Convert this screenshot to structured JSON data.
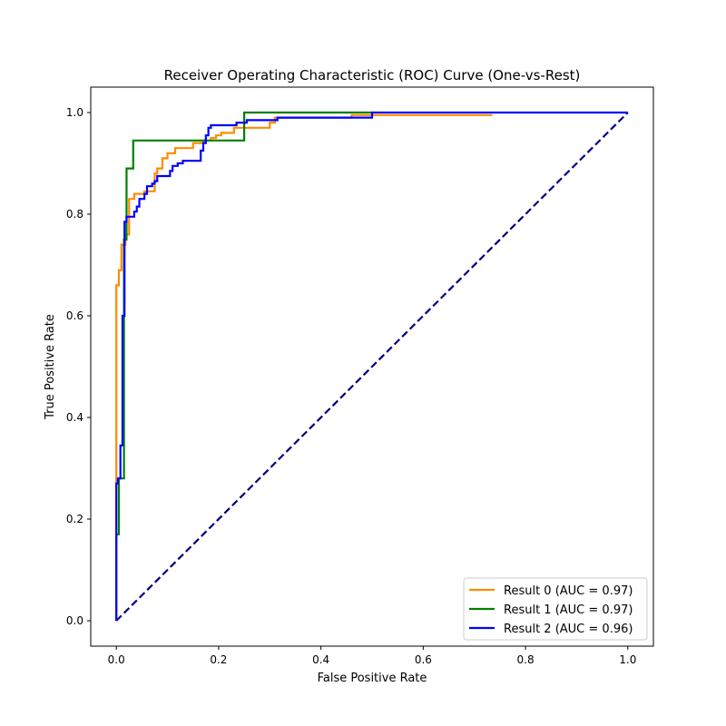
{
  "chart_data": {
    "type": "line",
    "title": "Receiver Operating Characteristic (ROC) Curve (One-vs-Rest)",
    "xlabel": "False Positive Rate",
    "ylabel": "True Positive Rate",
    "xlim": [
      -0.05,
      1.05
    ],
    "ylim": [
      -0.05,
      1.05
    ],
    "xticks": [
      0.0,
      0.2,
      0.4,
      0.6,
      0.8,
      1.0
    ],
    "yticks": [
      0.0,
      0.2,
      0.4,
      0.6,
      0.8,
      1.0
    ],
    "grid": false,
    "legend_position": "bottom-right",
    "series": [
      {
        "name": "Result 0 (AUC = 0.97)",
        "color": "#ff8c00",
        "style": "step",
        "x": [
          0.0,
          0.0,
          0.005,
          0.005,
          0.01,
          0.01,
          0.018,
          0.018,
          0.025,
          0.025,
          0.035,
          0.035,
          0.055,
          0.055,
          0.075,
          0.075,
          0.08,
          0.08,
          0.09,
          0.09,
          0.1,
          0.1,
          0.115,
          0.115,
          0.15,
          0.15,
          0.17,
          0.17,
          0.185,
          0.185,
          0.195,
          0.195,
          0.205,
          0.205,
          0.23,
          0.23,
          0.3,
          0.3,
          0.31,
          0.31,
          0.46,
          0.46,
          0.735
        ],
        "y": [
          0.0,
          0.66,
          0.66,
          0.69,
          0.69,
          0.74,
          0.74,
          0.76,
          0.76,
          0.83,
          0.83,
          0.84,
          0.84,
          0.845,
          0.845,
          0.88,
          0.88,
          0.89,
          0.89,
          0.91,
          0.91,
          0.92,
          0.92,
          0.93,
          0.93,
          0.94,
          0.94,
          0.945,
          0.945,
          0.95,
          0.95,
          0.955,
          0.955,
          0.96,
          0.96,
          0.97,
          0.97,
          0.98,
          0.98,
          0.99,
          0.99,
          0.995,
          0.995
        ]
      },
      {
        "name": "Result 1 (AUC = 0.97)",
        "color": "#008000",
        "style": "step",
        "x": [
          0.0,
          0.0,
          0.005,
          0.005,
          0.015,
          0.015,
          0.02,
          0.02,
          0.033,
          0.033,
          0.25,
          0.25,
          0.5
        ],
        "y": [
          0.0,
          0.17,
          0.17,
          0.28,
          0.28,
          0.75,
          0.75,
          0.89,
          0.89,
          0.945,
          0.945,
          1.0,
          1.0
        ]
      },
      {
        "name": "Result 2 (AUC = 0.96)",
        "color": "#0000ff",
        "style": "step",
        "x": [
          0.0,
          0.0,
          0.003,
          0.003,
          0.008,
          0.008,
          0.012,
          0.012,
          0.016,
          0.016,
          0.02,
          0.02,
          0.035,
          0.035,
          0.04,
          0.04,
          0.045,
          0.045,
          0.055,
          0.055,
          0.06,
          0.06,
          0.07,
          0.07,
          0.075,
          0.075,
          0.08,
          0.08,
          0.105,
          0.105,
          0.11,
          0.11,
          0.12,
          0.12,
          0.13,
          0.13,
          0.165,
          0.165,
          0.17,
          0.17,
          0.175,
          0.175,
          0.18,
          0.18,
          0.185,
          0.185,
          0.235,
          0.235,
          0.255,
          0.255,
          0.315,
          0.315,
          0.5,
          0.5,
          1.0
        ],
        "y": [
          0.0,
          0.27,
          0.27,
          0.28,
          0.28,
          0.345,
          0.345,
          0.6,
          0.6,
          0.785,
          0.785,
          0.795,
          0.795,
          0.805,
          0.805,
          0.815,
          0.815,
          0.83,
          0.83,
          0.84,
          0.84,
          0.855,
          0.855,
          0.86,
          0.86,
          0.865,
          0.865,
          0.875,
          0.875,
          0.885,
          0.885,
          0.895,
          0.895,
          0.9,
          0.9,
          0.905,
          0.905,
          0.925,
          0.925,
          0.94,
          0.94,
          0.955,
          0.955,
          0.97,
          0.97,
          0.975,
          0.975,
          0.98,
          0.98,
          0.985,
          0.985,
          0.99,
          0.99,
          1.0,
          1.0
        ]
      },
      {
        "name": "",
        "color": "#000080",
        "style": "dashed",
        "x": [
          0.0,
          1.0
        ],
        "y": [
          0.0,
          1.0
        ]
      }
    ]
  }
}
